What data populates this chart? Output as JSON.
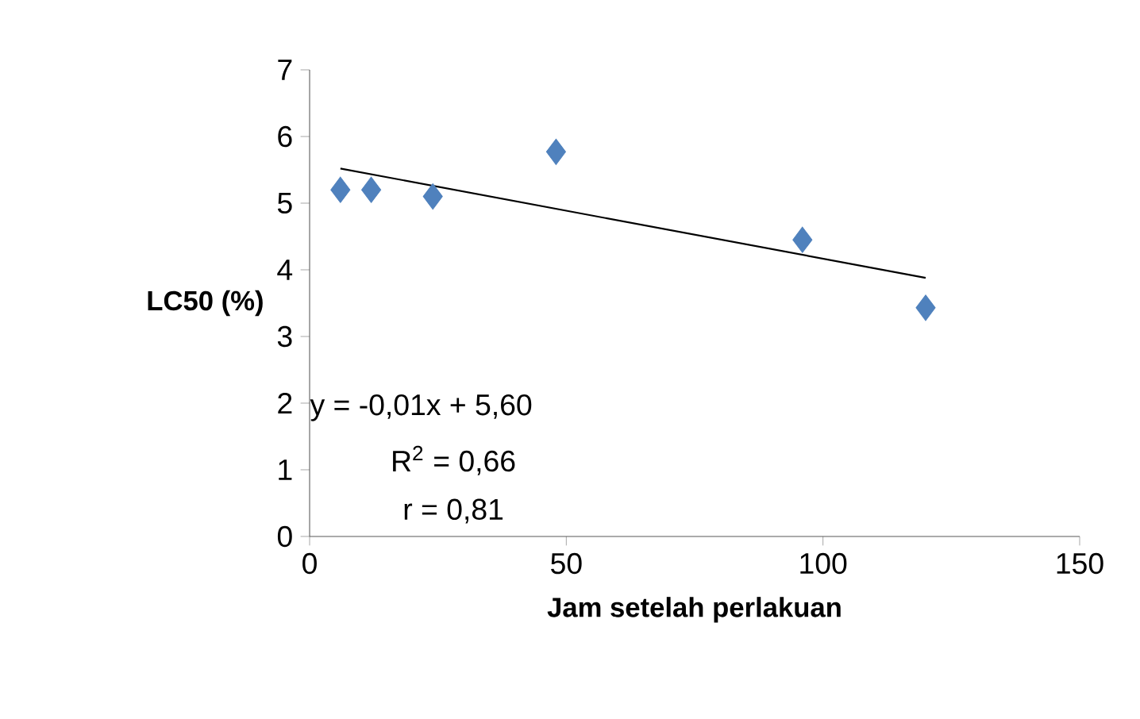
{
  "chart_data": {
    "type": "scatter",
    "xlabel": "Jam setelah perlakuan",
    "ylabel": "LC50 (%)",
    "xlim": [
      0,
      150
    ],
    "xticks": [
      0,
      50,
      100,
      150
    ],
    "ylim": [
      0,
      7
    ],
    "yticks": [
      0,
      1,
      2,
      3,
      4,
      5,
      6,
      7
    ],
    "grid": false,
    "marker": "diamond",
    "series": [
      {
        "x": [
          6,
          12,
          24,
          48,
          96,
          120
        ],
        "values": [
          5.2,
          5.2,
          5.1,
          5.77,
          4.45,
          3.43
        ],
        "color": "#4f81bd"
      },
      {
        "type": "line",
        "x": [
          6,
          120
        ],
        "values": [
          5.52,
          3.88
        ],
        "color": "#000000",
        "marker": "none"
      }
    ],
    "annotations": [
      "y = -0,01x + 5,60",
      "R$^{2}$ = 0,66",
      "r = 0,81"
    ]
  }
}
